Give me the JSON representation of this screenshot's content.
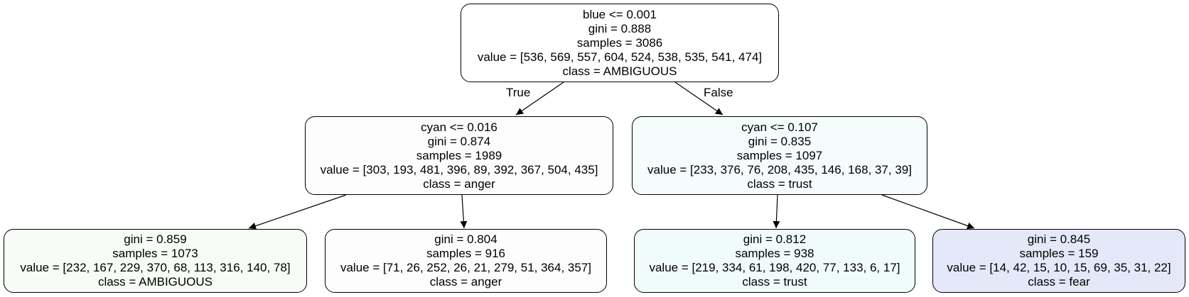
{
  "tree": {
    "root": {
      "split": "blue <= 0.001",
      "gini": "gini = 0.888",
      "samples": "samples = 3086",
      "value": "value = [536, 569, 557, 604, 524, 538, 535, 541, 474]",
      "class": "class = AMBIGUOUS",
      "fill": "#fefffe"
    },
    "edge_labels": {
      "true": "True",
      "false": "False"
    },
    "left": {
      "split": "cyan <= 0.016",
      "gini": "gini = 0.874",
      "samples": "samples = 1989",
      "value": "value = [303, 193, 481, 396, 89, 392, 367, 504, 435]",
      "class": "class = anger",
      "fill": "#fdfdfd"
    },
    "right": {
      "split": "cyan <= 0.107",
      "gini": "gini = 0.835",
      "samples": "samples = 1097",
      "value": "value = [233, 376, 76, 208, 435, 146, 168, 37, 39]",
      "class": "class = trust",
      "fill": "#f4fcfc"
    },
    "leaf1": {
      "gini": "gini = 0.859",
      "samples": "samples = 1073",
      "value": "value = [232, 167, 229, 370, 68, 113, 316, 140, 78]",
      "class": "class = AMBIGUOUS",
      "fill": "#f7fcf7"
    },
    "leaf2": {
      "gini": "gini = 0.804",
      "samples": "samples = 916",
      "value": "value = [71, 26, 252, 26, 21, 279, 51, 364, 357]",
      "class": "class = anger",
      "fill": "#fdfdfd"
    },
    "leaf3": {
      "gini": "gini = 0.812",
      "samples": "samples = 938",
      "value": "value = [219, 334, 61, 198, 420, 77, 133, 6, 17]",
      "class": "class = trust",
      "fill": "#f0fbfb"
    },
    "leaf4": {
      "gini": "gini = 0.845",
      "samples": "samples = 159",
      "value": "value = [14, 42, 15, 10, 15, 69, 35, 31, 22]",
      "class": "class = fear",
      "fill": "#e4e8f8"
    }
  }
}
